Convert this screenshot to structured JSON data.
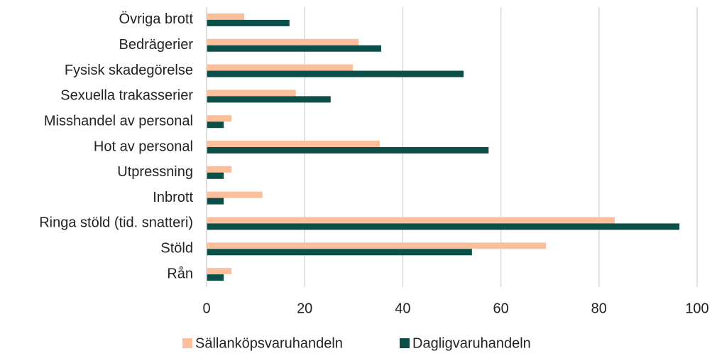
{
  "chart_data": {
    "type": "barh",
    "categories": [
      "Övriga brott",
      "Bedrägerier",
      "Fysisk skadegörelse",
      "Sexuella trakasserier",
      "Misshandel av personal",
      "Hot av personal",
      "Utpressning",
      "Inbrott",
      "Ringa stöld (tid. snatteri)",
      "Stöld",
      "Rån"
    ],
    "series": [
      {
        "name": "Sällanköpsvaruhandeln",
        "color": "#fbbf9b",
        "values": [
          7.7,
          31,
          29.8,
          18.2,
          5.1,
          35.3,
          5.1,
          11.4,
          83.2,
          69.2,
          5.1
        ]
      },
      {
        "name": "Dagligvaruhandeln",
        "color": "#0b4f48",
        "values": [
          16.9,
          35.6,
          52.4,
          25.3,
          3.5,
          57.5,
          3.5,
          3.5,
          96.4,
          54.1,
          3.5
        ]
      }
    ],
    "xlim": [
      0,
      100
    ],
    "xticks": [
      0,
      20,
      40,
      60,
      80,
      100
    ],
    "grid": true,
    "legend": "bottom"
  }
}
